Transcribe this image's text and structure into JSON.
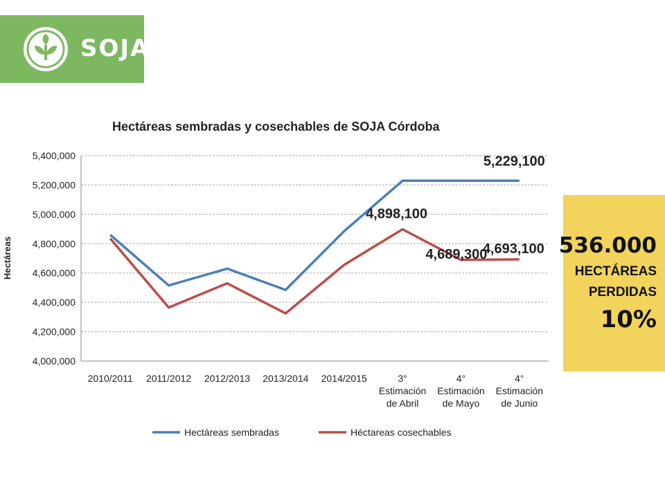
{
  "logo": {
    "text": "SOJA"
  },
  "colors": {
    "logo_bg": "#7db860",
    "series_sown": "#4a7ebb",
    "series_harvest": "#be4b48",
    "callout_bg": "#f2d35b"
  },
  "callout": {
    "value": "536.000",
    "line1": "HECTÁREAS",
    "line2": "PERDIDAS",
    "percent": "10%"
  },
  "chart_data": {
    "type": "line",
    "title": "Hectáreas sembradas y cosechables de SOJA Córdoba",
    "xlabel": "",
    "ylabel": "Hectáreas",
    "ylim": [
      4000000,
      5400000
    ],
    "yticks": [
      "4,000,000",
      "4,200,000",
      "4,400,000",
      "4,600,000",
      "4,800,000",
      "5,000,000",
      "5,200,000",
      "5,400,000"
    ],
    "grid": true,
    "legend": "bottom",
    "categories": [
      [
        "2010/2011"
      ],
      [
        "2011/2012"
      ],
      [
        "2012/2013"
      ],
      [
        "2013/2014"
      ],
      [
        "2014/2015"
      ],
      [
        "3°",
        "Estimación",
        "de Abril"
      ],
      [
        "4°",
        "Estimación",
        "de Mayo"
      ],
      [
        "4°",
        "Estimación",
        "de Junio"
      ]
    ],
    "series": [
      {
        "name": "Hectáreas sembradas",
        "color": "#4a7ebb",
        "values": [
          4860000,
          4515000,
          4630000,
          4485000,
          4885000,
          5229100,
          5229100,
          5229100
        ]
      },
      {
        "name": "Héctareas cosechables",
        "color": "#be4b48",
        "values": [
          4835000,
          4365000,
          4530000,
          4325000,
          4655000,
          4898100,
          4689300,
          4693100
        ]
      }
    ],
    "annotations": [
      {
        "text": "5,229,100",
        "series": 0,
        "index": 7
      },
      {
        "text": "4,898,100",
        "series": 1,
        "index": 5
      },
      {
        "text": "4,689,300",
        "series": 1,
        "index": 6
      },
      {
        "text": "4,693,100",
        "series": 1,
        "index": 7
      }
    ]
  }
}
